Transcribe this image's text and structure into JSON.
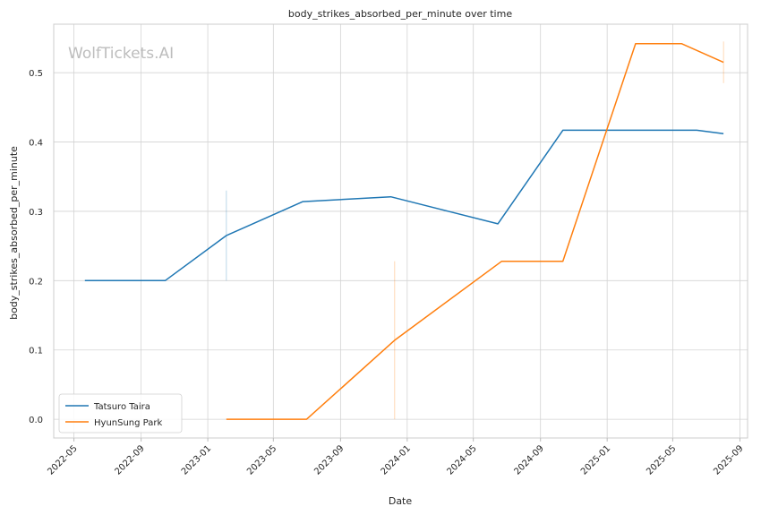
{
  "chart_data": {
    "type": "line",
    "title": "body_strikes_absorbed_per_minute over time",
    "xlabel": "Date",
    "ylabel": "body_strikes_absorbed_per_minute",
    "watermark": "WolfTickets.AI",
    "xlim": [
      "2022-03-25",
      "2025-09-15"
    ],
    "ylim": [
      -0.027,
      0.57
    ],
    "x_ticks": [
      "2022-05",
      "2022-09",
      "2023-01",
      "2023-05",
      "2023-09",
      "2024-01",
      "2024-05",
      "2024-09",
      "2025-01",
      "2025-05",
      "2025-09"
    ],
    "y_ticks": [
      "0.0",
      "0.1",
      "0.2",
      "0.3",
      "0.4",
      "0.5"
    ],
    "grid": true,
    "legend_position": "lower-left",
    "series": [
      {
        "name": "Tatsuro Taira",
        "color": "#1f77b4",
        "points": [
          {
            "x": "2022-05-21",
            "y": 0.2
          },
          {
            "x": "2022-10-15",
            "y": 0.2
          },
          {
            "x": "2023-02-04",
            "y": 0.265
          },
          {
            "x": "2023-06-24",
            "y": 0.314
          },
          {
            "x": "2023-12-02",
            "y": 0.321
          },
          {
            "x": "2024-06-15",
            "y": 0.282
          },
          {
            "x": "2024-10-12",
            "y": 0.417
          },
          {
            "x": "2025-06-14",
            "y": 0.417
          },
          {
            "x": "2025-08-02",
            "y": 0.412
          }
        ],
        "error_bars": [
          {
            "x": "2023-02-04",
            "low": 0.2,
            "high": 0.33
          }
        ]
      },
      {
        "name": "HyunSung Park",
        "color": "#ff7f0e",
        "points": [
          {
            "x": "2023-02-04",
            "y": 0.0
          },
          {
            "x": "2023-07-01",
            "y": 0.0
          },
          {
            "x": "2023-12-09",
            "y": 0.114
          },
          {
            "x": "2024-06-22",
            "y": 0.228
          },
          {
            "x": "2024-10-12",
            "y": 0.228
          },
          {
            "x": "2025-02-22",
            "y": 0.542
          },
          {
            "x": "2025-05-17",
            "y": 0.542
          },
          {
            "x": "2025-08-02",
            "y": 0.515
          }
        ],
        "error_bars": [
          {
            "x": "2023-12-09",
            "low": 0.0,
            "high": 0.228
          },
          {
            "x": "2025-08-02",
            "low": 0.485,
            "high": 0.545
          }
        ]
      }
    ]
  }
}
